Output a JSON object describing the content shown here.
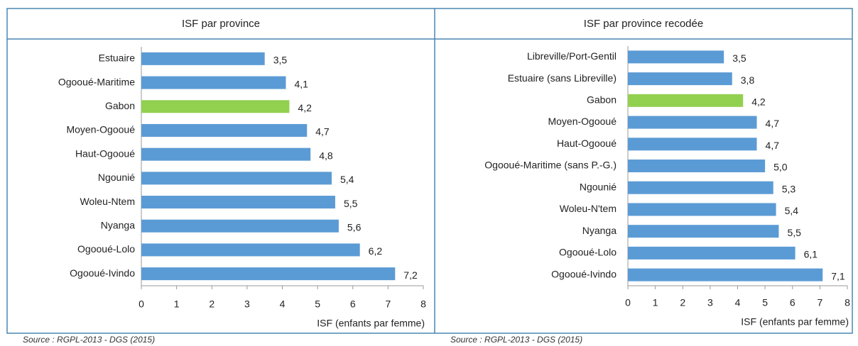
{
  "chart_data": [
    {
      "type": "bar",
      "orientation": "horizontal",
      "title": "ISF par province",
      "categories": [
        "Estuaire",
        "Ogooué-Maritime",
        "Gabon",
        "Moyen-Ogooué",
        "Haut-Ogooué",
        "Ngounié",
        "Woleu-Ntem",
        "Nyanga",
        "Ogooué-Lolo",
        "Ogooué-Ivindo"
      ],
      "values": [
        3.5,
        4.1,
        4.2,
        4.7,
        4.8,
        5.4,
        5.5,
        5.6,
        6.2,
        7.2
      ],
      "value_labels": [
        "3,5",
        "4,1",
        "4,2",
        "4,7",
        "4,8",
        "5,4",
        "5,5",
        "5,6",
        "6,2",
        "7,2"
      ],
      "colors": [
        "#5b9bd5",
        "#5b9bd5",
        "#92d050",
        "#5b9bd5",
        "#5b9bd5",
        "#5b9bd5",
        "#5b9bd5",
        "#5b9bd5",
        "#5b9bd5",
        "#5b9bd5"
      ],
      "xlim": [
        0,
        8
      ],
      "xticks": [
        0,
        1,
        2,
        3,
        4,
        5,
        6,
        7,
        8
      ],
      "xlabel": "ISF (enfants par femme)",
      "source": "Source : RGPL-2013 - DGS (2015)"
    },
    {
      "type": "bar",
      "orientation": "horizontal",
      "title": "ISF par province recodée",
      "categories": [
        "Libreville/Port-Gentil",
        "Estuaire (sans Libreville)",
        "Gabon",
        "Moyen-Ogooué",
        "Haut-Ogooué",
        "Ogooué-Maritime (sans P.-G.)",
        "Ngounié",
        "Woleu-N'tem",
        "Nyanga",
        "Ogooué-Lolo",
        "Ogooué-Ivindo"
      ],
      "values": [
        3.5,
        3.8,
        4.2,
        4.7,
        4.7,
        5.0,
        5.3,
        5.4,
        5.5,
        6.1,
        7.1
      ],
      "value_labels": [
        "3,5",
        "3,8",
        "4,2",
        "4,7",
        "4,7",
        "5,0",
        "5,3",
        "5,4",
        "5,5",
        "6,1",
        "7,1"
      ],
      "colors": [
        "#5b9bd5",
        "#5b9bd5",
        "#92d050",
        "#5b9bd5",
        "#5b9bd5",
        "#5b9bd5",
        "#5b9bd5",
        "#5b9bd5",
        "#5b9bd5",
        "#5b9bd5",
        "#5b9bd5"
      ],
      "xlim": [
        0,
        8
      ],
      "xticks": [
        0,
        1,
        2,
        3,
        4,
        5,
        6,
        7,
        8
      ],
      "xlabel": "ISF (enfants par femme)",
      "source": "Source : RGPL-2013 - DGS (2015)"
    }
  ]
}
